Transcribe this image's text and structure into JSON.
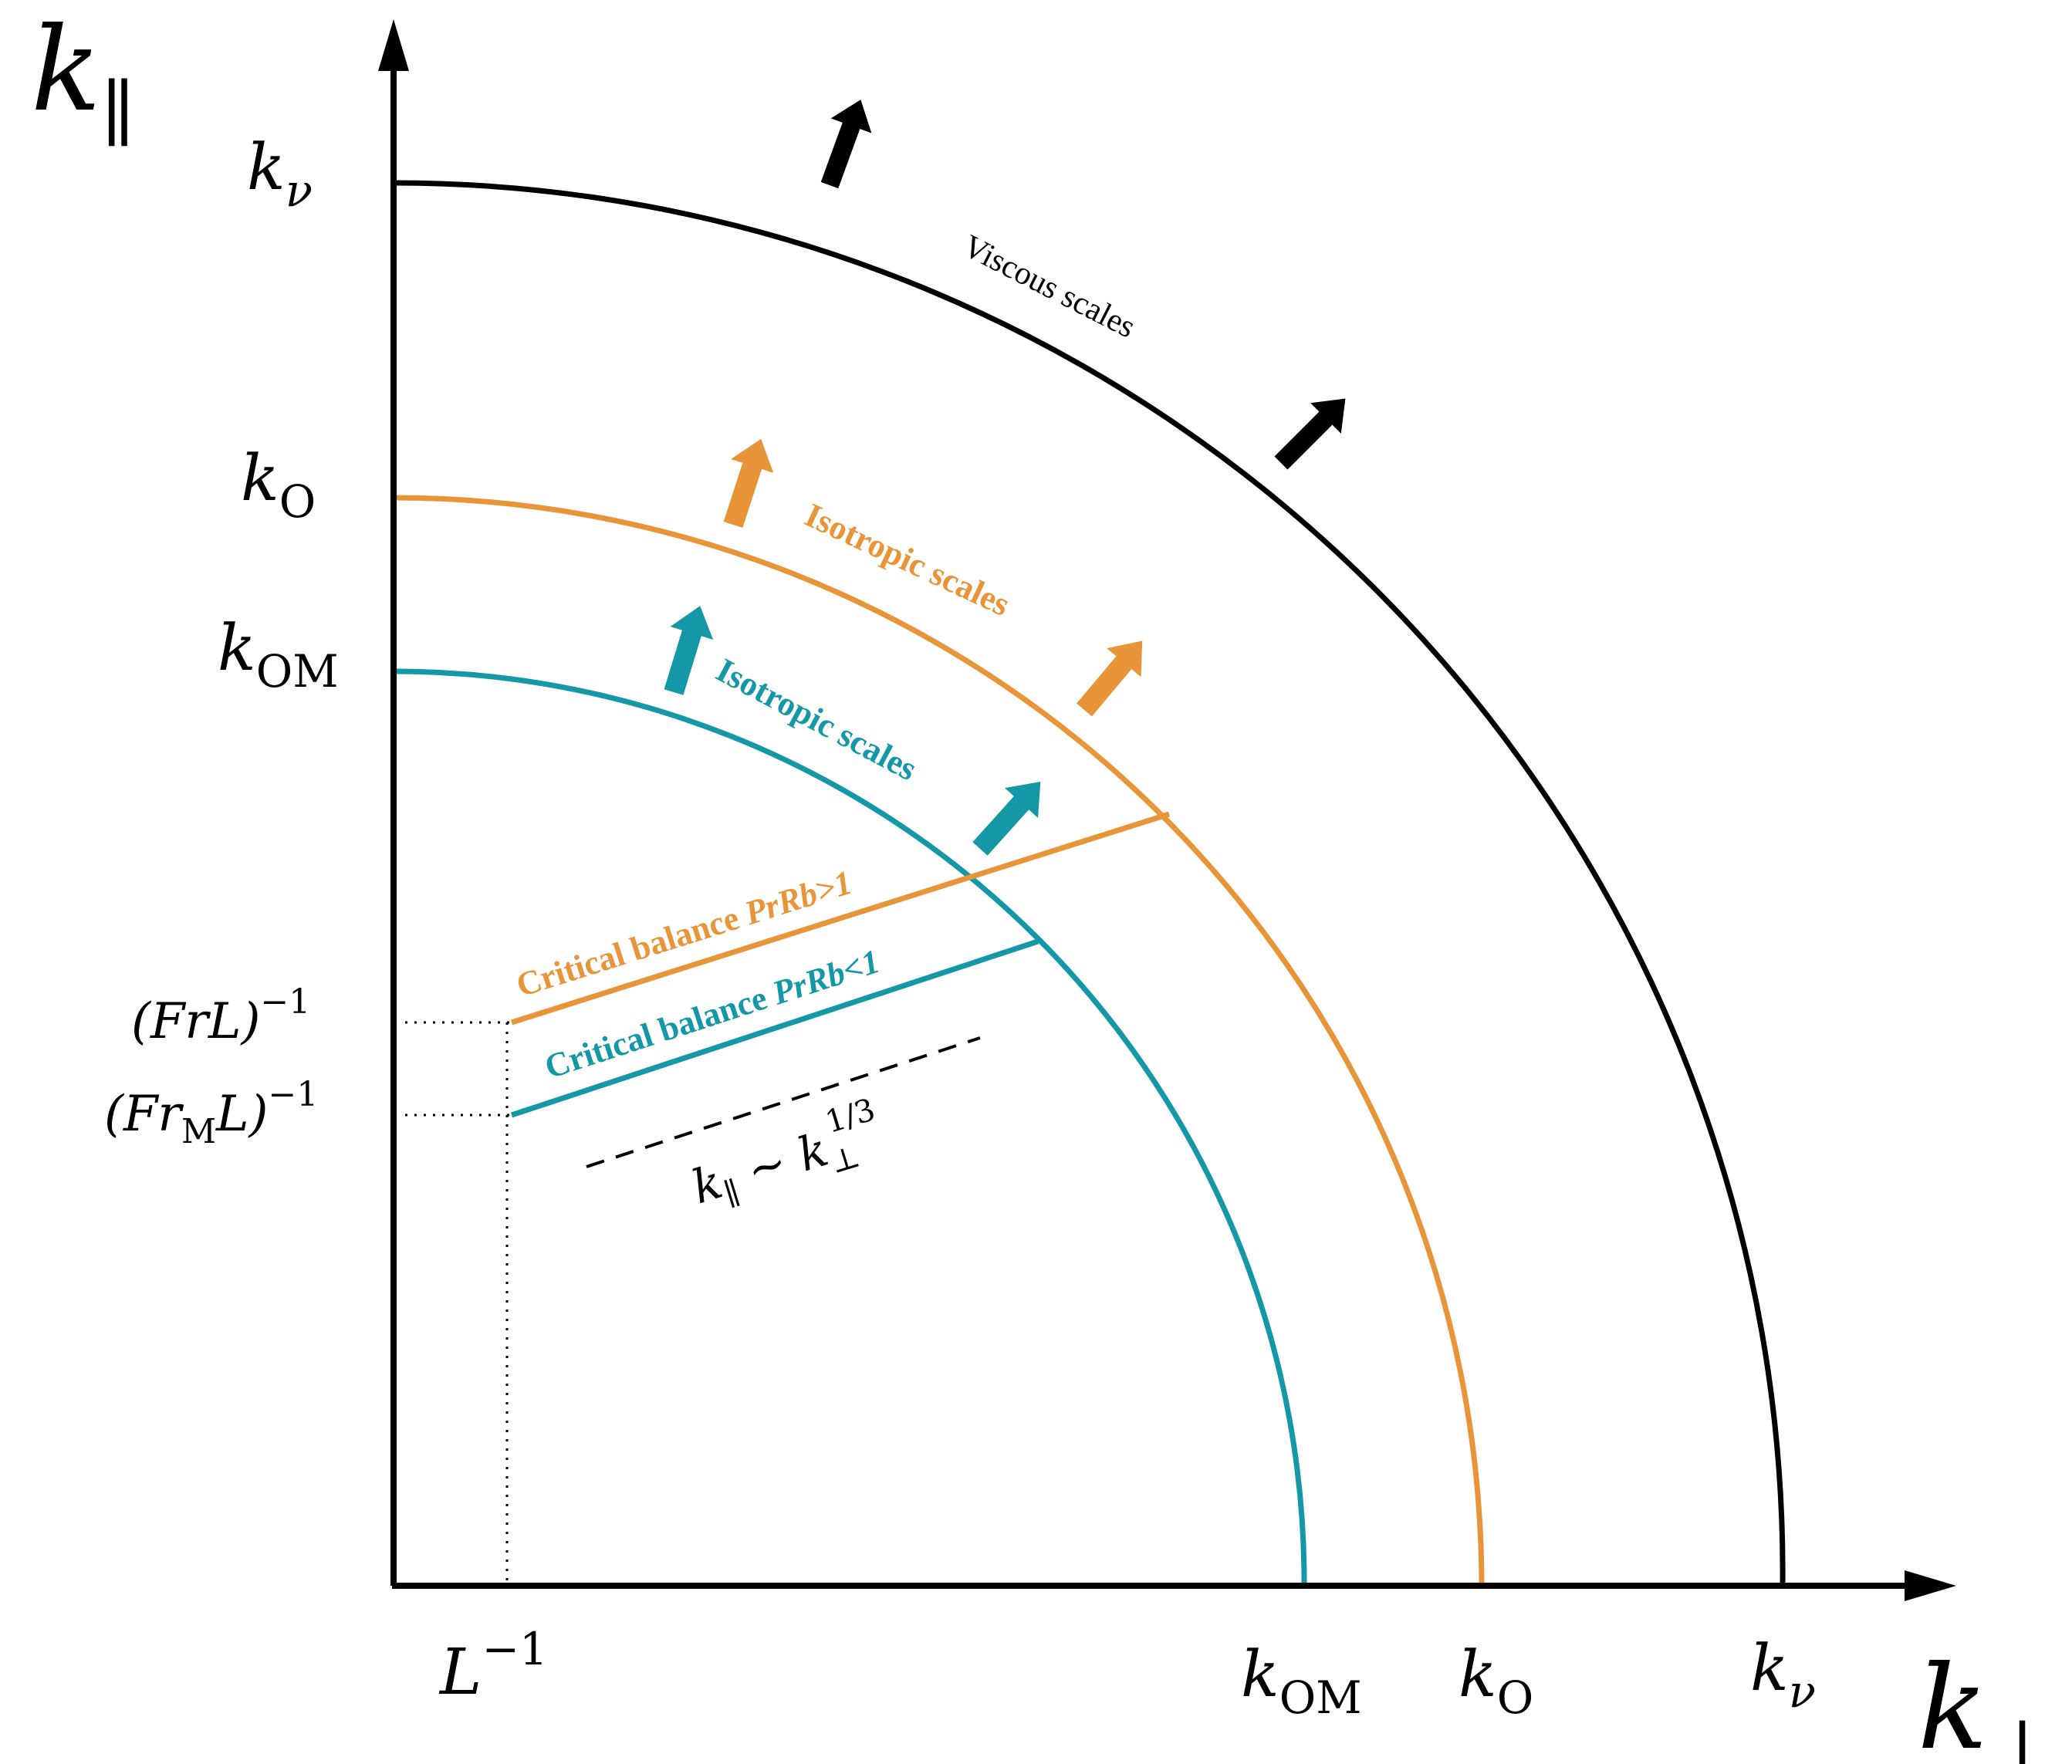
{
  "colors": {
    "black": "#000000",
    "orange": "#E8953A",
    "teal": "#1497A6"
  },
  "axes": {
    "y_label": {
      "base": "k",
      "sub": "∥"
    },
    "x_label": {
      "base": "k",
      "sub": "⊥"
    }
  },
  "y_ticks": {
    "k_nu": {
      "base": "k",
      "sub": "ν"
    },
    "k_O": {
      "base": "k",
      "sub": "O"
    },
    "k_OM": {
      "base": "k",
      "sub": "OM"
    },
    "FrL": {
      "text": "(FrL)",
      "sup": "−1"
    },
    "FrML": {
      "pre": "(Fr",
      "sub": "M",
      "post": "L)",
      "sup": "−1"
    }
  },
  "x_ticks": {
    "L_inv": {
      "base": "L",
      "sup": "−1"
    },
    "k_OM": {
      "base": "k",
      "sub": "OM"
    },
    "k_O": {
      "base": "k",
      "sub": "O"
    },
    "k_nu": {
      "base": "k",
      "sub": "ν"
    }
  },
  "curve_labels": {
    "viscous": "Viscous scales",
    "isotropic_orange": "Isotropic scales",
    "isotropic_teal": "Isotropic scales"
  },
  "balance_labels": {
    "orange": {
      "text": "Critical balance ",
      "emph": "PrRb>1"
    },
    "teal": {
      "text": "Critical balance ",
      "emph": "PrRb<1"
    }
  },
  "scaling_law": {
    "lhs": "k",
    "lhs_sub": "∥",
    "rel": " ∼ ",
    "rhs": "k",
    "rhs_sub": "⊥",
    "rhs_sup": "1/3"
  }
}
